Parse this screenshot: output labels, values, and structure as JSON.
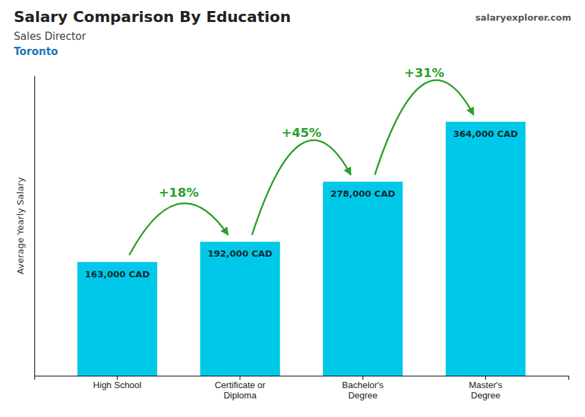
{
  "chart_data": {
    "type": "bar",
    "title": "Salary Comparison By Education",
    "subtitle": [
      "Sales Director",
      "Toronto"
    ],
    "y_label": "Average Yearly Salary",
    "categories": [
      "High School",
      "Certificate or\nDiploma",
      "Bachelor's\nDegree",
      "Master's\nDegree"
    ],
    "values": [
      163000,
      192000,
      278000,
      364000
    ],
    "value_labels": [
      "163,000 CAD",
      "192,000 CAD",
      "278,000 CAD",
      "364,000 CAD"
    ],
    "data_labels": true,
    "color": "#00c8e8",
    "ylim": [
      0,
      430000
    ],
    "tick_labels": "x",
    "grid": false,
    "annotations": [
      {
        "text": "+18%",
        "from": "High School",
        "to": "Certificate or\nDiploma"
      },
      {
        "text": "+45%",
        "from": "Certificate or\nDiploma",
        "to": "Bachelor's\nDegree"
      },
      {
        "text": "+31%",
        "from": "Bachelor's\nDegree",
        "to": "Master's\nDegree"
      },
      {
        "text": "salaryexplorer.com"
      }
    ]
  }
}
